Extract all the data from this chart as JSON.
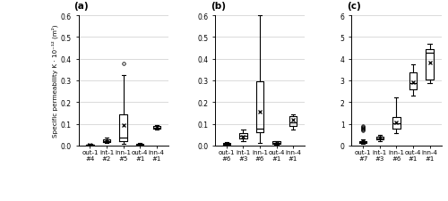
{
  "panels": [
    "(a)",
    "(b)",
    "(c)"
  ],
  "ylims": [
    0.6,
    0.6,
    6
  ],
  "yticks": [
    [
      0.0,
      0.1,
      0.2,
      0.3,
      0.4,
      0.5,
      0.6
    ],
    [
      0.0,
      0.1,
      0.2,
      0.3,
      0.4,
      0.5,
      0.6
    ],
    [
      0,
      1,
      2,
      3,
      4,
      5,
      6
    ]
  ],
  "categories": [
    "out-1",
    "int-1",
    "inn-1",
    "out-4",
    "inn-4"
  ],
  "specimen_counts": [
    [
      "#4",
      "#2",
      "#5",
      "#1",
      "#1"
    ],
    [
      "#6",
      "#3",
      "#6",
      "#1",
      "#1"
    ],
    [
      "#7",
      "#3",
      "#6",
      "#1",
      "#1"
    ]
  ],
  "ylabel": "Specific permeability K · 10⁻¹² (m²)",
  "box_data": {
    "a": {
      "out-1": {
        "whislo": 0.001,
        "q1": 0.002,
        "med": 0.003,
        "q3": 0.005,
        "whishi": 0.007,
        "mean": 0.004,
        "fliers": []
      },
      "int-1": {
        "whislo": 0.01,
        "q1": 0.016,
        "med": 0.02,
        "q3": 0.027,
        "whishi": 0.035,
        "mean": 0.022,
        "fliers": []
      },
      "inn-1": {
        "whislo": 0.008,
        "q1": 0.022,
        "med": 0.038,
        "q3": 0.145,
        "whishi": 0.325,
        "mean": 0.093,
        "fliers": [
          0.38
        ]
      },
      "out-4": {
        "whislo": 0.002,
        "q1": 0.003,
        "med": 0.005,
        "q3": 0.007,
        "whishi": 0.01,
        "mean": 0.005,
        "fliers": []
      },
      "inn-4": {
        "whislo": 0.074,
        "q1": 0.079,
        "med": 0.083,
        "q3": 0.089,
        "whishi": 0.093,
        "mean": 0.084,
        "fliers": []
      }
    },
    "b": {
      "out-1": {
        "whislo": 0.003,
        "q1": 0.005,
        "med": 0.008,
        "q3": 0.012,
        "whishi": 0.015,
        "mean": 0.009,
        "fliers": []
      },
      "int-1": {
        "whislo": 0.02,
        "q1": 0.033,
        "med": 0.043,
        "q3": 0.055,
        "whishi": 0.072,
        "mean": 0.042,
        "fliers": []
      },
      "inn-1": {
        "whislo": 0.012,
        "q1": 0.062,
        "med": 0.078,
        "q3": 0.295,
        "whishi": 0.6,
        "mean": 0.155,
        "fliers": []
      },
      "out-4": {
        "whislo": 0.005,
        "q1": 0.008,
        "med": 0.012,
        "q3": 0.018,
        "whishi": 0.022,
        "mean": 0.012,
        "fliers": []
      },
      "inn-4": {
        "whislo": 0.072,
        "q1": 0.088,
        "med": 0.108,
        "q3": 0.135,
        "whishi": 0.145,
        "mean": 0.118,
        "fliers": []
      }
    },
    "c": {
      "out-1": {
        "whislo": 0.08,
        "q1": 0.12,
        "med": 0.17,
        "q3": 0.22,
        "whishi": 0.28,
        "mean": 0.18,
        "fliers": [
          0.68,
          0.72,
          0.78,
          0.82,
          0.86,
          0.9
        ]
      },
      "int-1": {
        "whislo": 0.22,
        "q1": 0.28,
        "med": 0.34,
        "q3": 0.41,
        "whishi": 0.5,
        "mean": 0.36,
        "fliers": []
      },
      "inn-1": {
        "whislo": 0.55,
        "q1": 0.78,
        "med": 1.02,
        "q3": 1.33,
        "whishi": 2.22,
        "mean": 1.05,
        "fliers": []
      },
      "out-4": {
        "whislo": 2.28,
        "q1": 2.58,
        "med": 2.88,
        "q3": 3.35,
        "whishi": 3.72,
        "mean": 2.93,
        "fliers": []
      },
      "inn-4": {
        "whislo": 2.88,
        "q1": 3.02,
        "med": 4.28,
        "q3": 4.45,
        "whishi": 4.68,
        "mean": 3.82,
        "fliers": []
      }
    }
  }
}
